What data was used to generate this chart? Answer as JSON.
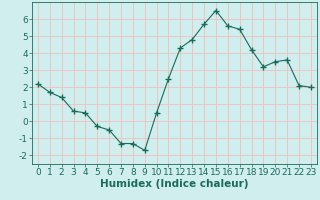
{
  "x": [
    0,
    1,
    2,
    3,
    4,
    5,
    6,
    7,
    8,
    9,
    10,
    11,
    12,
    13,
    14,
    15,
    16,
    17,
    18,
    19,
    20,
    21,
    22,
    23
  ],
  "y": [
    2.2,
    1.7,
    1.4,
    0.6,
    0.5,
    -0.3,
    -0.5,
    -1.3,
    -1.3,
    -1.7,
    0.5,
    2.5,
    4.3,
    4.8,
    5.7,
    6.5,
    5.6,
    5.4,
    4.2,
    3.2,
    3.5,
    3.6,
    2.1,
    2.0
  ],
  "line_color": "#1a6b5a",
  "marker": "+",
  "marker_size": 4,
  "bg_color": "#d0eeee",
  "grid_color": "#f0c0c0",
  "xlabel": "Humidex (Indice chaleur)",
  "ylabel": "",
  "xlim": [
    -0.5,
    23.5
  ],
  "ylim": [
    -2.5,
    7.0
  ],
  "yticks": [
    -2,
    -1,
    0,
    1,
    2,
    3,
    4,
    5,
    6
  ],
  "xticks": [
    0,
    1,
    2,
    3,
    4,
    5,
    6,
    7,
    8,
    9,
    10,
    11,
    12,
    13,
    14,
    15,
    16,
    17,
    18,
    19,
    20,
    21,
    22,
    23
  ],
  "tick_label_fontsize": 6.5,
  "xlabel_fontsize": 7.5,
  "title": ""
}
